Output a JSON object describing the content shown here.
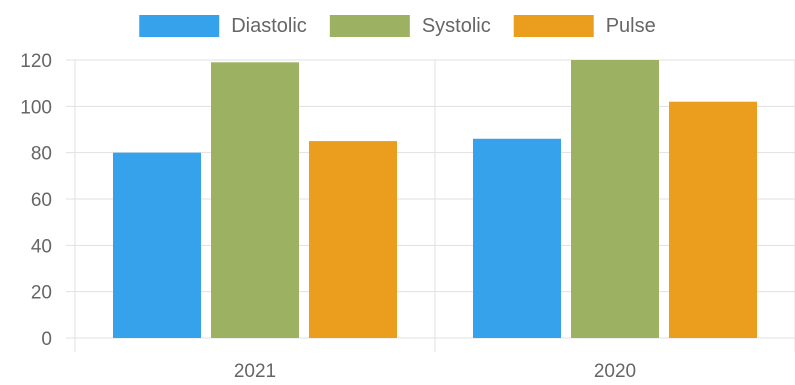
{
  "chart_data": {
    "type": "bar",
    "categories": [
      "2021",
      "2020"
    ],
    "series": [
      {
        "name": "Diastolic",
        "color": "#36a2eb",
        "values": [
          80,
          86
        ]
      },
      {
        "name": "Systolic",
        "color": "#9cb161",
        "values": [
          119,
          120
        ]
      },
      {
        "name": "Pulse",
        "color": "#eb9e1e",
        "values": [
          85,
          102
        ]
      }
    ],
    "yticks": [
      "0",
      "20",
      "40",
      "60",
      "80",
      "100",
      "120"
    ],
    "ylim": [
      0,
      120
    ],
    "grid": true,
    "legend_position": "top-center",
    "title": "",
    "xlabel": "",
    "ylabel": ""
  }
}
